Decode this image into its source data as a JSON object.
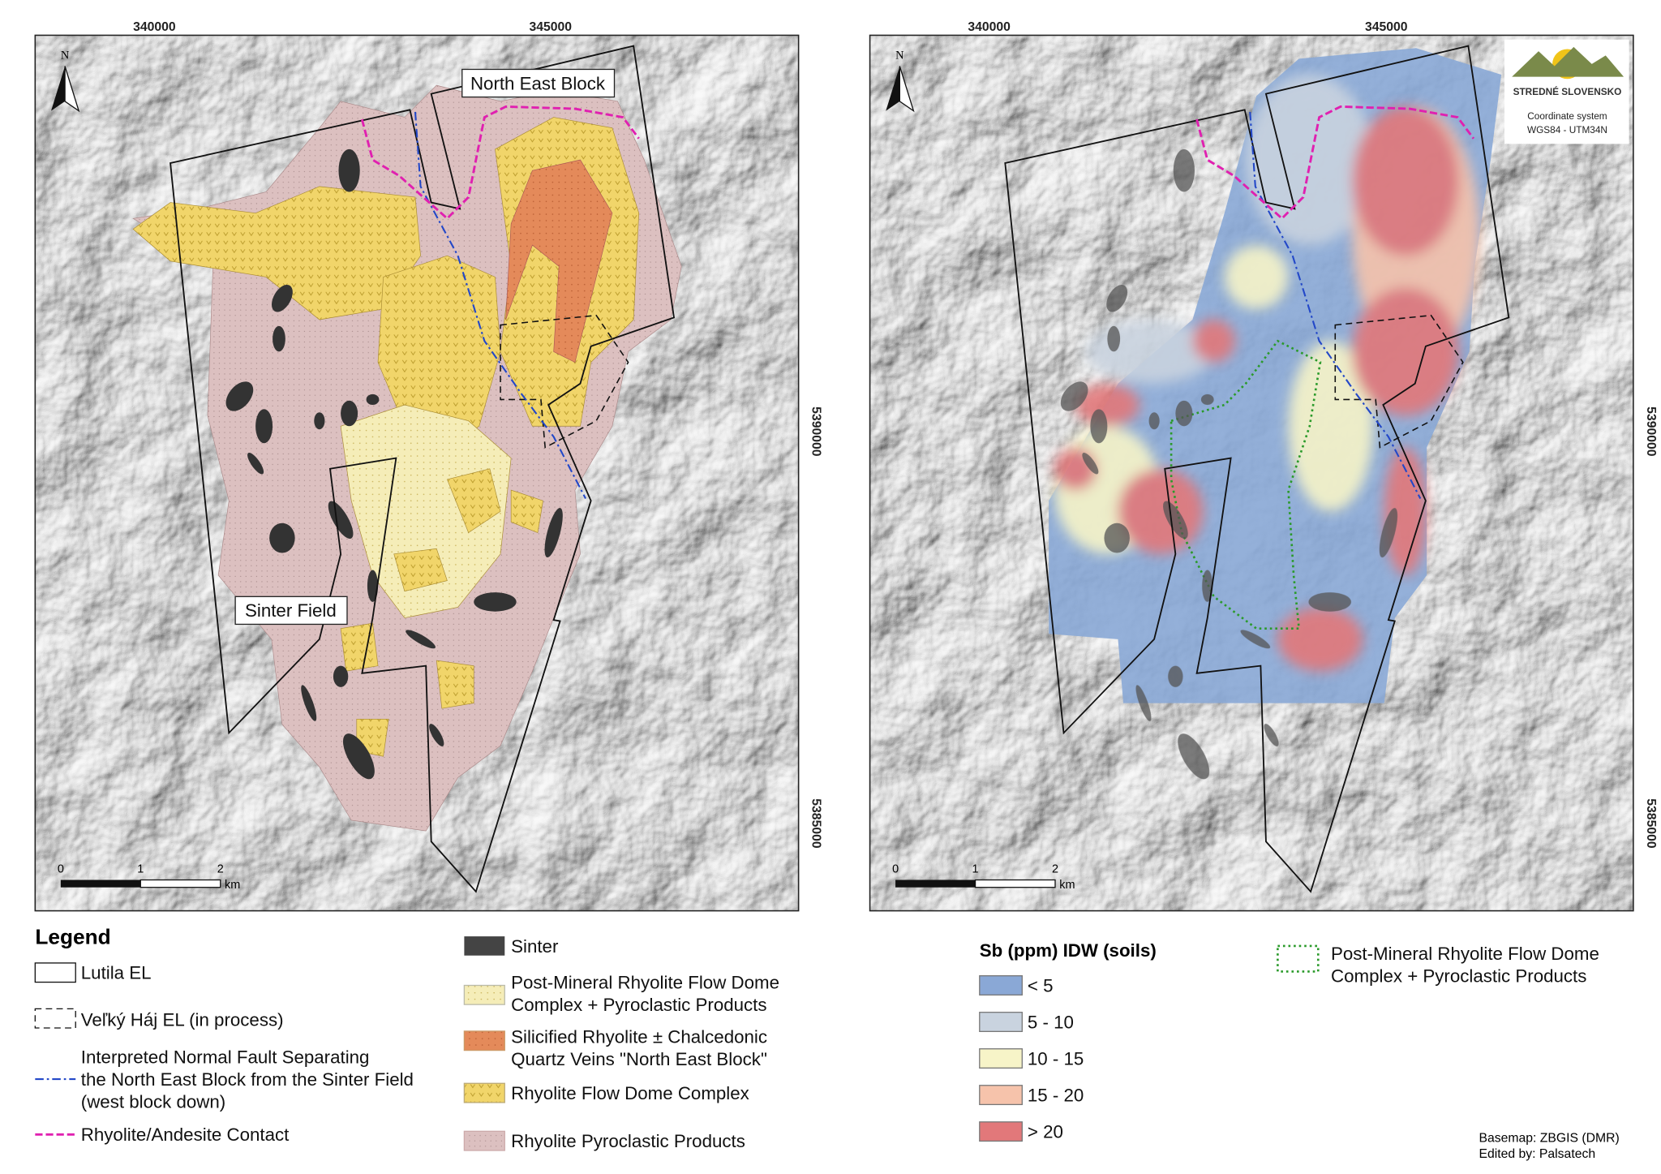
{
  "left_map": {
    "x_ticks": [
      "340000",
      "345000"
    ],
    "y_ticks": [
      "5390000",
      "5385000"
    ],
    "north": "N",
    "labels": [
      "North East Block",
      "Sinter Field"
    ],
    "scale": {
      "ticks": [
        "0",
        "1",
        "2"
      ],
      "unit": "km"
    }
  },
  "right_map": {
    "x_ticks": [
      "340000",
      "345000"
    ],
    "y_ticks": [
      "5390000",
      "5385000"
    ],
    "north": "N",
    "scale": {
      "ticks": [
        "0",
        "1",
        "2"
      ],
      "unit": "km"
    },
    "logo": "STREDNÉ SLOVENSKO",
    "coordinate_system": [
      "Coordinate system",
      "WGS84 - UTM34N"
    ]
  },
  "legend": {
    "title": "Legend",
    "items": [
      {
        "lines": [
          "Lutila EL"
        ]
      },
      {
        "lines": [
          "Veľký Háj EL (in process)"
        ]
      },
      {
        "lines": [
          "Interpreted Normal Fault Separating",
          "the North East Block from the Sinter Field",
          "(west block down)"
        ]
      },
      {
        "lines": [
          "Rhyolite/Andesite Contact"
        ]
      },
      {
        "lines": [
          "Sinter"
        ]
      },
      {
        "lines": [
          "Post-Mineral Rhyolite Flow Dome",
          "Complex + Pyroclastic Products"
        ]
      },
      {
        "lines": [
          "Silicified Rhyolite ± Chalcedonic",
          "Quartz Veins \"North East Block\""
        ]
      },
      {
        "lines": [
          "Rhyolite Flow Dome Complex"
        ]
      },
      {
        "lines": [
          "Rhyolite Pyroclastic Products"
        ]
      }
    ]
  },
  "sb_legend": {
    "title": "Sb (ppm) IDW (soils)",
    "classes": [
      {
        "label": "< 5",
        "color": "#8aa8d6"
      },
      {
        "label": "5 - 10",
        "color": "#c9d3df"
      },
      {
        "label": "10 - 15",
        "color": "#f7f4c8"
      },
      {
        "label": "15 - 20",
        "color": "#f6c3ab"
      },
      {
        "label": "> 20",
        "color": "#e2787a"
      }
    ]
  },
  "overlay_legend": {
    "lines": [
      "Post-Mineral Rhyolite Flow Dome",
      "Complex + Pyroclastic Products"
    ]
  },
  "credits": [
    "Basemap: ZBGIS (DMR)",
    "Edited by: Palsatech"
  ]
}
